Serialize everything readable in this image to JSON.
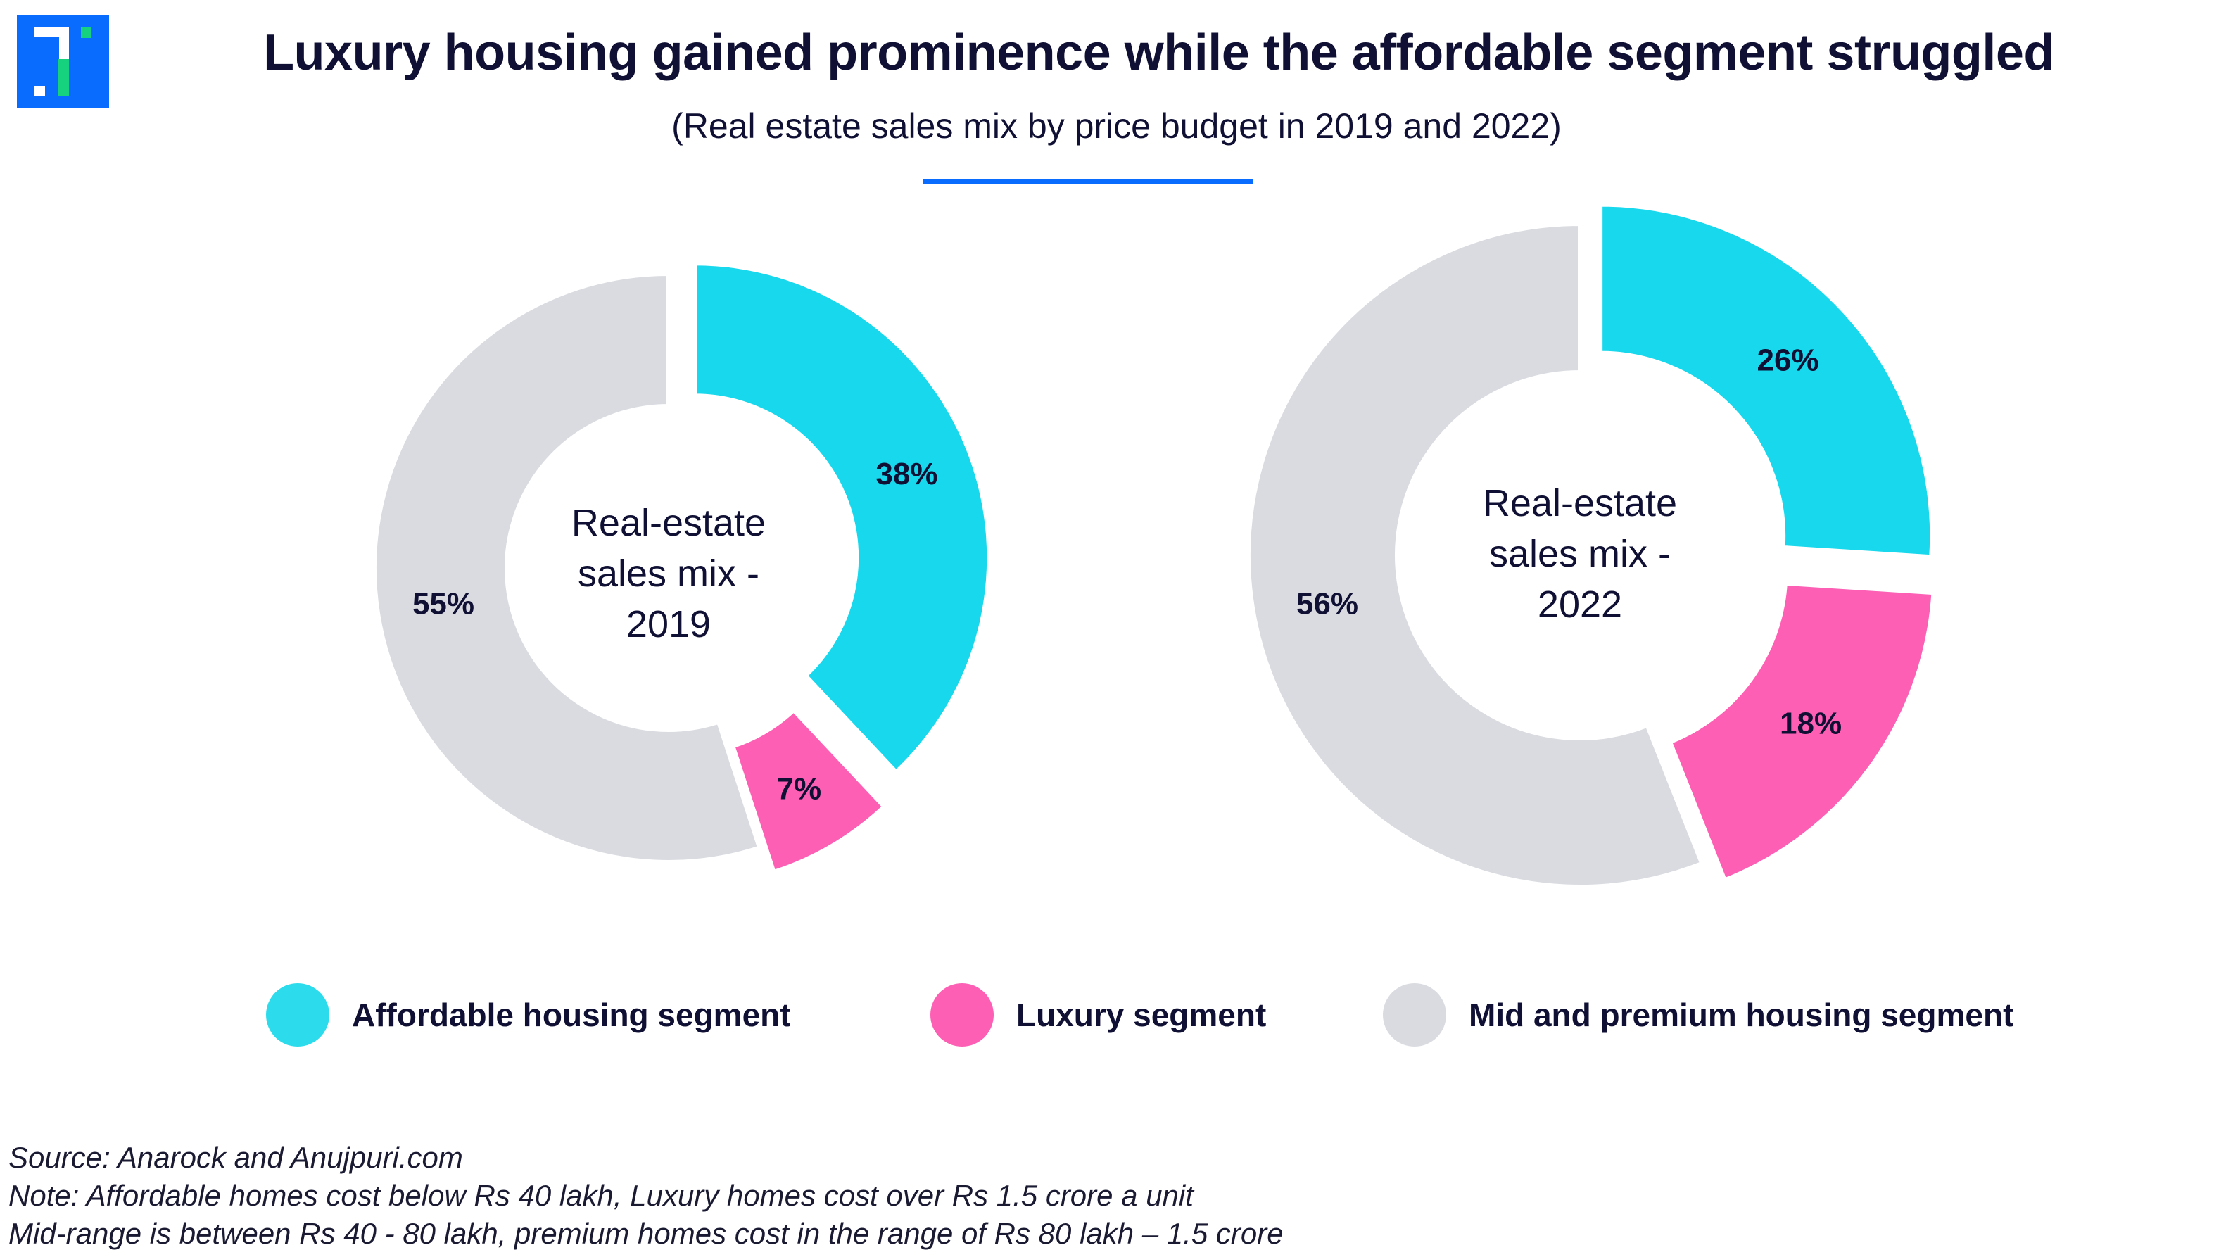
{
  "header": {
    "title": "Luxury housing gained prominence while the affordable segment struggled",
    "subtitle": "(Real estate sales mix by price budget in 2019 and 2022)",
    "accent_color": "#0a6cff"
  },
  "logo": {
    "icon": "brand-logo-icon"
  },
  "colors": {
    "affordable": "#17d8ec",
    "luxury": "#fc5fb4",
    "mid_premium": "#d9dbe0"
  },
  "chart_data": [
    {
      "type": "pie",
      "variant": "donut-exploded",
      "title": "Real-estate sales mix - 2019",
      "center_lines": [
        "Real-estate",
        "sales mix -",
        "2019"
      ],
      "categories": [
        "Affordable housing segment",
        "Luxury segment",
        "Mid and premium housing segment"
      ],
      "values": [
        38,
        7,
        55
      ],
      "labels": [
        "38%",
        "7%",
        "55%"
      ],
      "unit": "%"
    },
    {
      "type": "pie",
      "variant": "donut-exploded",
      "title": "Real-estate sales mix - 2022",
      "center_lines": [
        "Real-estate",
        "sales mix -",
        "2022"
      ],
      "categories": [
        "Affordable housing segment",
        "Luxury segment",
        "Mid and premium housing segment"
      ],
      "values": [
        26,
        18,
        56
      ],
      "labels": [
        "26%",
        "18%",
        "56%"
      ],
      "unit": "%"
    }
  ],
  "legend": {
    "placement": "bottom",
    "items": [
      {
        "label": "Affordable housing segment",
        "color": "#2ddcec"
      },
      {
        "label": "Luxury segment",
        "color": "#fc5fb4"
      },
      {
        "label": "Mid and premium housing segment",
        "color": "#d9dbe0"
      }
    ]
  },
  "footnotes": {
    "source": "Source: Anarock and Anujpuri.com",
    "note1": "Note: Affordable homes cost below Rs 40 lakh, Luxury homes cost over Rs 1.5 crore a unit",
    "note2": "Mid-range is between Rs 40 - 80 lakh, premium homes cost in the range of Rs 80 lakh – 1.5 crore"
  }
}
